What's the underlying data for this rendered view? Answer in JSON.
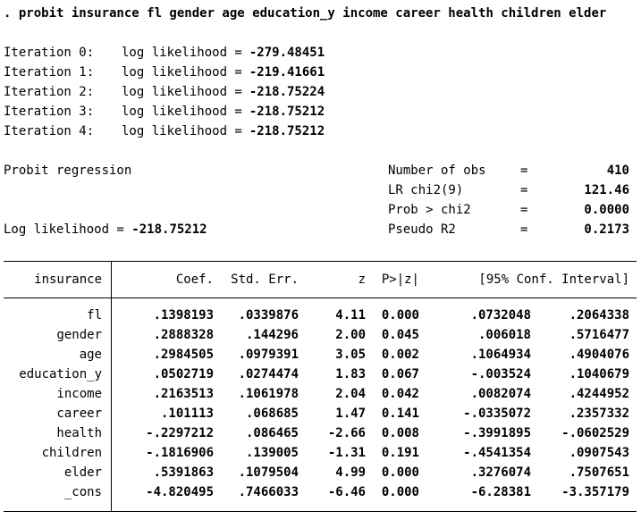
{
  "command": ". probit insurance fl gender age education_y income career health children elder",
  "labels": {
    "log_likelihood": "log likelihood ="
  },
  "iterations": [
    {
      "label": "Iteration 0:",
      "value": "-279.48451"
    },
    {
      "label": "Iteration 1:",
      "value": "-219.41661"
    },
    {
      "label": "Iteration 2:",
      "value": "-218.75224"
    },
    {
      "label": "Iteration 3:",
      "value": "-218.75212"
    },
    {
      "label": "Iteration 4:",
      "value": "-218.75212"
    }
  ],
  "model": {
    "title": "Probit regression",
    "log_likelihood_label": "Log likelihood =",
    "log_likelihood_value": "-218.75212",
    "stats": [
      {
        "label": "Number of obs",
        "eq": "=",
        "value": "410"
      },
      {
        "label": "LR chi2(9)",
        "eq": "=",
        "value": "121.46"
      },
      {
        "label": "Prob > chi2",
        "eq": "=",
        "value": "0.0000"
      },
      {
        "label": "Pseudo R2",
        "eq": "=",
        "value": "0.2173"
      }
    ]
  },
  "table": {
    "dep_var": "insurance",
    "headers": {
      "coef": "Coef.",
      "se": "Std. Err.",
      "z": "z",
      "p": "P>|z|",
      "ci": "[95% Conf. Interval]"
    },
    "rows": [
      {
        "var": "fl",
        "coef": ".1398193",
        "se": ".0339876",
        "z": "4.11",
        "p": "0.000",
        "lo": ".0732048",
        "hi": ".2064338"
      },
      {
        "var": "gender",
        "coef": ".2888328",
        "se": ".144296",
        "z": "2.00",
        "p": "0.045",
        "lo": ".006018",
        "hi": ".5716477"
      },
      {
        "var": "age",
        "coef": ".2984505",
        "se": ".0979391",
        "z": "3.05",
        "p": "0.002",
        "lo": ".1064934",
        "hi": ".4904076"
      },
      {
        "var": "education_y",
        "coef": ".0502719",
        "se": ".0274474",
        "z": "1.83",
        "p": "0.067",
        "lo": "-.003524",
        "hi": ".1040679"
      },
      {
        "var": "income",
        "coef": ".2163513",
        "se": ".1061978",
        "z": "2.04",
        "p": "0.042",
        "lo": ".0082074",
        "hi": ".4244952"
      },
      {
        "var": "career",
        "coef": ".101113",
        "se": ".068685",
        "z": "1.47",
        "p": "0.141",
        "lo": "-.0335072",
        "hi": ".2357332"
      },
      {
        "var": "health",
        "coef": "-.2297212",
        "se": ".086465",
        "z": "-2.66",
        "p": "0.008",
        "lo": "-.3991895",
        "hi": "-.0602529"
      },
      {
        "var": "children",
        "coef": "-.1816906",
        "se": ".139005",
        "z": "-1.31",
        "p": "0.191",
        "lo": "-.4541354",
        "hi": ".0907543"
      },
      {
        "var": "elder",
        "coef": ".5391863",
        "se": ".1079504",
        "z": "4.99",
        "p": "0.000",
        "lo": ".3276074",
        "hi": ".7507651"
      },
      {
        "var": "_cons",
        "coef": "-4.820495",
        "se": ".7466033",
        "z": "-6.46",
        "p": "0.000",
        "lo": "-6.28381",
        "hi": "-3.357179"
      }
    ]
  }
}
